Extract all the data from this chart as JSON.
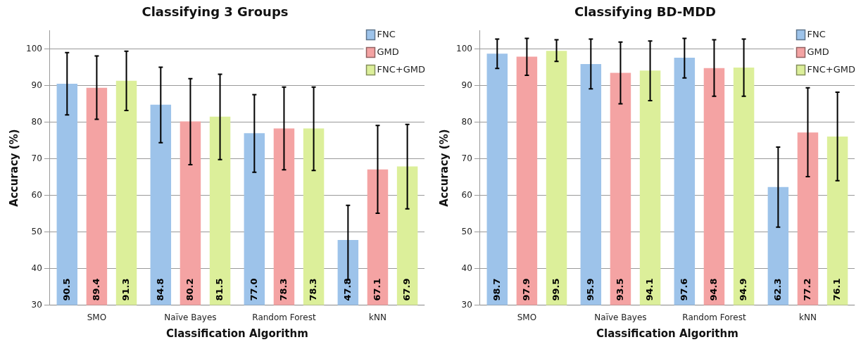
{
  "chart_data": [
    {
      "type": "bar",
      "title": "Classifying 3 Groups",
      "xlabel": "Classification Algorithm",
      "ylabel": "Accuracy (%)",
      "categories": [
        "SMO",
        "Naïve Bayes",
        "Random Forest",
        "kNN"
      ],
      "series": [
        {
          "name": "FNC",
          "color": "#9dc3ea",
          "values": [
            90.5,
            84.8,
            77.0,
            47.8
          ],
          "value_labels": [
            "90.5",
            "84.8",
            "77.0",
            "47.8"
          ],
          "errors": [
            [
              82,
              99
            ],
            [
              74.4,
              95
            ],
            [
              66.3,
              87.5
            ],
            [
              37,
              57.3
            ]
          ]
        },
        {
          "name": "GMD",
          "color": "#f4a3a3",
          "values": [
            89.4,
            80.2,
            78.3,
            67.1
          ],
          "errors": [
            [
              80.8,
              98.1
            ],
            [
              68.4,
              91.9
            ],
            [
              67,
              89.6
            ],
            [
              55.1,
              79.1
            ]
          ]
        },
        {
          "name": "FNC+GMD",
          "color": "#dcef9a",
          "values": [
            91.3,
            81.5,
            78.3,
            67.9
          ],
          "errors": [
            [
              83.2,
              99.4
            ],
            [
              69.8,
              93.1
            ],
            [
              66.8,
              89.6
            ],
            [
              56.3,
              79.4
            ]
          ]
        }
      ],
      "ylim": [
        30,
        105
      ],
      "yticks": [
        30,
        40,
        50,
        60,
        70,
        80,
        90,
        100
      ],
      "grid": "y",
      "legend": "top right",
      "data_labels": true
    },
    {
      "type": "bar",
      "title": "Classifying BD-MDD",
      "xlabel": "Classification Algorithm",
      "ylabel": "Accuracy (%)",
      "categories": [
        "SMO",
        "Naïve Bayes",
        "Random Forest",
        "kNN"
      ],
      "series": [
        {
          "name": "FNC",
          "color": "#9dc3ea",
          "values": [
            98.7,
            95.9,
            97.6,
            62.3
          ],
          "errors": [
            [
              94.7,
              102.7
            ],
            [
              89.1,
              102.7
            ],
            [
              92.1,
              102.9
            ],
            [
              51.3,
              73.2
            ]
          ]
        },
        {
          "name": "GMD",
          "color": "#f4a3a3",
          "values": [
            97.9,
            93.5,
            94.8,
            77.2
          ],
          "errors": [
            [
              92.8,
              102.9
            ],
            [
              85,
              101.9
            ],
            [
              87.1,
              102.5
            ],
            [
              65.1,
              89.4
            ]
          ]
        },
        {
          "name": "FNC+GMD",
          "color": "#dcef9a",
          "values": [
            99.5,
            94.1,
            94.9,
            76.1
          ],
          "errors": [
            [
              96.6,
              102.5
            ],
            [
              85.9,
              102.2
            ],
            [
              87.1,
              102.7
            ],
            [
              64,
              88.2
            ]
          ]
        }
      ],
      "ylim": [
        30,
        105
      ],
      "yticks": [
        30,
        40,
        50,
        60,
        70,
        80,
        90,
        100
      ],
      "grid": "y",
      "legend": "top right",
      "data_labels": true
    }
  ]
}
